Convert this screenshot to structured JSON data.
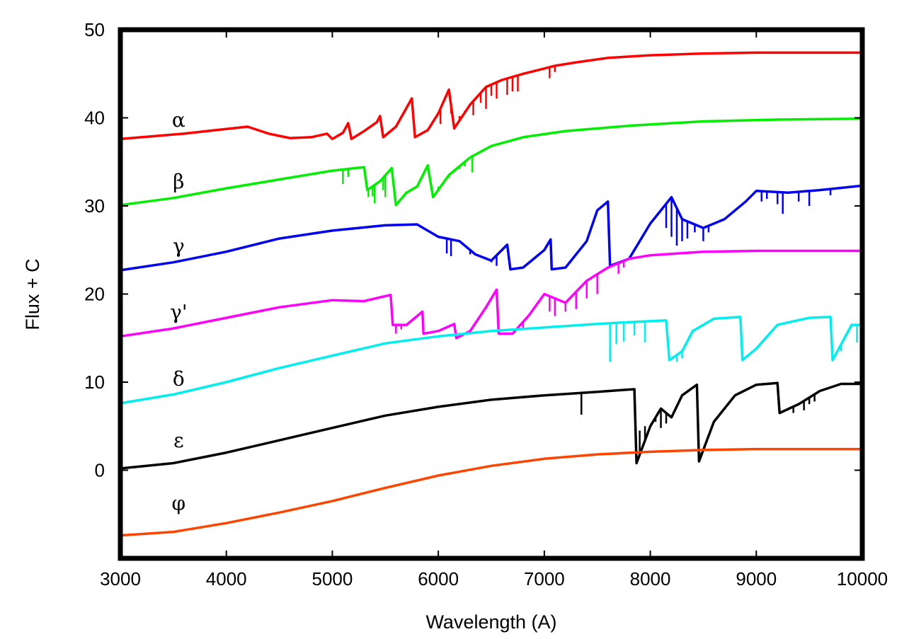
{
  "chart_data": {
    "type": "line",
    "title": "",
    "xlabel": "Wavelength (A)",
    "ylabel": "Flux + C",
    "xlim": [
      3000,
      10000
    ],
    "ylim": [
      -10,
      50
    ],
    "xticks": [
      3000,
      4000,
      5000,
      6000,
      7000,
      8000,
      9000,
      10000
    ],
    "yticks": [
      0,
      10,
      20,
      30,
      40,
      50
    ],
    "xtick_labels": [
      "3000",
      "4000",
      "5000",
      "6000",
      "7000",
      "8000",
      "9000",
      "10000"
    ],
    "ytick_labels": [
      "0",
      "10",
      "20",
      "30",
      "40",
      "50"
    ],
    "grid": false,
    "legend": "none",
    "series": [
      {
        "label": "α",
        "color": "#ff0000",
        "label_x": 3550,
        "label_y": 39.0,
        "points": [
          [
            3000,
            37.6
          ],
          [
            3300,
            37.9
          ],
          [
            3600,
            38.2
          ],
          [
            3900,
            38.6
          ],
          [
            4200,
            39.0
          ],
          [
            4400,
            38.2
          ],
          [
            4600,
            37.7
          ],
          [
            4800,
            37.8
          ],
          [
            4950,
            38.2
          ],
          [
            5000,
            37.6
          ],
          [
            5100,
            38.3
          ],
          [
            5150,
            39.4
          ],
          [
            5180,
            37.6
          ],
          [
            5300,
            38.5
          ],
          [
            5420,
            39.5
          ],
          [
            5450,
            40.2
          ],
          [
            5480,
            37.8
          ],
          [
            5600,
            39.0
          ],
          [
            5750,
            42.2
          ],
          [
            5780,
            37.8
          ],
          [
            5900,
            38.6
          ],
          [
            6000,
            40.5
          ],
          [
            6100,
            43.2
          ],
          [
            6150,
            38.8
          ],
          [
            6300,
            41.5
          ],
          [
            6450,
            43.5
          ],
          [
            6600,
            44.3
          ],
          [
            6800,
            45.0
          ],
          [
            7000,
            45.6
          ],
          [
            7100,
            45.9
          ],
          [
            7300,
            46.3
          ],
          [
            7600,
            46.8
          ],
          [
            8000,
            47.1
          ],
          [
            8500,
            47.3
          ],
          [
            9000,
            47.4
          ],
          [
            9500,
            47.4
          ],
          [
            10000,
            47.4
          ]
        ],
        "dips": [
          [
            5500,
            38.0
          ],
          [
            6020,
            39.3
          ],
          [
            6120,
            40.5
          ],
          [
            6200,
            40.2
          ],
          [
            6250,
            40.8
          ],
          [
            6330,
            40.3
          ],
          [
            6400,
            41.7
          ],
          [
            6450,
            41.0
          ],
          [
            6500,
            42.5
          ],
          [
            6550,
            42.2
          ],
          [
            6650,
            42.6
          ],
          [
            6700,
            43.0
          ],
          [
            6750,
            43.0
          ],
          [
            7050,
            44.5
          ],
          [
            7100,
            45.2
          ]
        ]
      },
      {
        "label": "β",
        "color": "#00ee00",
        "label_x": 3550,
        "label_y": 32.0,
        "points": [
          [
            3000,
            30.1
          ],
          [
            3500,
            30.9
          ],
          [
            4000,
            32.0
          ],
          [
            4500,
            33.0
          ],
          [
            5000,
            34.0
          ],
          [
            5300,
            34.4
          ],
          [
            5330,
            31.8
          ],
          [
            5450,
            32.8
          ],
          [
            5560,
            34.3
          ],
          [
            5600,
            30.1
          ],
          [
            5700,
            31.5
          ],
          [
            5800,
            32.2
          ],
          [
            5900,
            34.6
          ],
          [
            5950,
            31.0
          ],
          [
            6100,
            33.5
          ],
          [
            6300,
            35.5
          ],
          [
            6500,
            36.8
          ],
          [
            6800,
            37.8
          ],
          [
            7200,
            38.5
          ],
          [
            7800,
            39.1
          ],
          [
            8500,
            39.6
          ],
          [
            9200,
            39.8
          ],
          [
            10000,
            39.9
          ]
        ],
        "dips": [
          [
            5100,
            32.5
          ],
          [
            5150,
            33.3
          ],
          [
            5340,
            31.0
          ],
          [
            5380,
            31.1
          ],
          [
            5400,
            30.3
          ],
          [
            5480,
            31.8
          ],
          [
            5500,
            31.0
          ],
          [
            5620,
            30.2
          ],
          [
            5950,
            31.0
          ],
          [
            6000,
            32.2
          ],
          [
            6050,
            32.7
          ],
          [
            6100,
            33.2
          ],
          [
            6150,
            33.8
          ],
          [
            6200,
            34.2
          ],
          [
            6250,
            34.5
          ],
          [
            6320,
            33.8
          ]
        ]
      },
      {
        "label": "γ",
        "color": "#0000ee",
        "label_x": 3550,
        "label_y": 24.7,
        "points": [
          [
            3000,
            22.7
          ],
          [
            3500,
            23.6
          ],
          [
            4000,
            24.8
          ],
          [
            4500,
            26.3
          ],
          [
            5000,
            27.2
          ],
          [
            5500,
            27.8
          ],
          [
            5800,
            27.9
          ],
          [
            6000,
            26.5
          ],
          [
            6200,
            26.0
          ],
          [
            6350,
            24.5
          ],
          [
            6500,
            23.8
          ],
          [
            6650,
            25.6
          ],
          [
            6680,
            22.8
          ],
          [
            6800,
            23.0
          ],
          [
            7000,
            25.0
          ],
          [
            7060,
            26.2
          ],
          [
            7070,
            22.8
          ],
          [
            7200,
            23.0
          ],
          [
            7400,
            26.0
          ],
          [
            7500,
            29.5
          ],
          [
            7600,
            30.5
          ],
          [
            7620,
            23.2
          ],
          [
            7800,
            24.0
          ],
          [
            8000,
            28.0
          ],
          [
            8200,
            31.0
          ],
          [
            8300,
            28.5
          ],
          [
            8500,
            27.5
          ],
          [
            8700,
            28.5
          ],
          [
            8900,
            30.5
          ],
          [
            9000,
            31.7
          ],
          [
            9300,
            31.5
          ],
          [
            9600,
            31.8
          ],
          [
            10000,
            32.3
          ]
        ],
        "dips": [
          [
            6080,
            24.6
          ],
          [
            6120,
            24.3
          ],
          [
            6300,
            24.5
          ],
          [
            6500,
            23.6
          ],
          [
            6550,
            23.2
          ],
          [
            8150,
            27.5
          ],
          [
            8200,
            26.5
          ],
          [
            8250,
            25.5
          ],
          [
            8300,
            26.0
          ],
          [
            8350,
            26.3
          ],
          [
            8420,
            27.0
          ],
          [
            8500,
            26.0
          ],
          [
            8550,
            27.0
          ],
          [
            9050,
            30.5
          ],
          [
            9100,
            30.8
          ],
          [
            9200,
            30.2
          ],
          [
            9250,
            29.1
          ],
          [
            9400,
            30.5
          ],
          [
            9500,
            30.0
          ],
          [
            9700,
            31.2
          ]
        ]
      },
      {
        "label": "γ'",
        "color": "#ff00ff",
        "label_x": 3550,
        "label_y": 17.2,
        "points": [
          [
            3000,
            15.2
          ],
          [
            3500,
            16.1
          ],
          [
            4000,
            17.3
          ],
          [
            4500,
            18.5
          ],
          [
            5000,
            19.3
          ],
          [
            5300,
            19.2
          ],
          [
            5550,
            19.9
          ],
          [
            5570,
            16.5
          ],
          [
            5700,
            16.5
          ],
          [
            5850,
            18.0
          ],
          [
            5860,
            15.5
          ],
          [
            6000,
            15.8
          ],
          [
            6150,
            16.6
          ],
          [
            6170,
            15.0
          ],
          [
            6300,
            15.8
          ],
          [
            6450,
            18.5
          ],
          [
            6550,
            20.5
          ],
          [
            6570,
            15.5
          ],
          [
            6700,
            15.5
          ],
          [
            6850,
            17.5
          ],
          [
            7000,
            20.0
          ],
          [
            7200,
            19.0
          ],
          [
            7400,
            21.5
          ],
          [
            7600,
            23.0
          ],
          [
            7800,
            24.0
          ],
          [
            8000,
            24.4
          ],
          [
            8500,
            24.8
          ],
          [
            9000,
            24.9
          ],
          [
            10000,
            24.9
          ]
        ],
        "dips": [
          [
            5600,
            15.5
          ],
          [
            5650,
            16.0
          ],
          [
            6600,
            15.4
          ],
          [
            6800,
            16.0
          ],
          [
            7050,
            18.0
          ],
          [
            7100,
            17.5
          ],
          [
            7200,
            18.0
          ],
          [
            7300,
            18.3
          ],
          [
            7400,
            19.5
          ],
          [
            7500,
            20.0
          ],
          [
            7700,
            22.3
          ],
          [
            7750,
            23.0
          ]
        ]
      },
      {
        "label": "δ",
        "color": "#00eeee",
        "label_x": 3550,
        "label_y": 9.6,
        "points": [
          [
            3000,
            7.6
          ],
          [
            3500,
            8.6
          ],
          [
            4000,
            10.0
          ],
          [
            4500,
            11.6
          ],
          [
            5000,
            13.0
          ],
          [
            5500,
            14.4
          ],
          [
            6000,
            15.2
          ],
          [
            6500,
            15.8
          ],
          [
            7000,
            16.2
          ],
          [
            7500,
            16.6
          ],
          [
            7800,
            16.8
          ],
          [
            8150,
            17.0
          ],
          [
            8180,
            12.5
          ],
          [
            8300,
            13.5
          ],
          [
            8400,
            15.8
          ],
          [
            8600,
            17.2
          ],
          [
            8850,
            17.4
          ],
          [
            8870,
            12.5
          ],
          [
            9000,
            13.8
          ],
          [
            9200,
            16.5
          ],
          [
            9500,
            17.3
          ],
          [
            9700,
            17.4
          ],
          [
            9720,
            12.5
          ],
          [
            9900,
            16.5
          ],
          [
            10000,
            16.5
          ]
        ],
        "dips": [
          [
            7620,
            12.3
          ],
          [
            7680,
            14.3
          ],
          [
            7750,
            14.6
          ],
          [
            7850,
            15.3
          ],
          [
            7950,
            14.5
          ],
          [
            8250,
            12.3
          ],
          [
            8300,
            12.7
          ],
          [
            9800,
            13.5
          ],
          [
            9950,
            14.5
          ]
        ]
      },
      {
        "label": "ε",
        "color": "#000000",
        "label_x": 3550,
        "label_y": 2.6,
        "points": [
          [
            3000,
            0.2
          ],
          [
            3500,
            0.8
          ],
          [
            4000,
            2.0
          ],
          [
            4500,
            3.4
          ],
          [
            5000,
            4.8
          ],
          [
            5500,
            6.2
          ],
          [
            6000,
            7.2
          ],
          [
            6500,
            8.0
          ],
          [
            7000,
            8.5
          ],
          [
            7500,
            8.9
          ],
          [
            7850,
            9.2
          ],
          [
            7870,
            0.8
          ],
          [
            8000,
            5.0
          ],
          [
            8100,
            7.0
          ],
          [
            8200,
            6.0
          ],
          [
            8300,
            8.5
          ],
          [
            8440,
            9.7
          ],
          [
            8460,
            1.0
          ],
          [
            8600,
            5.5
          ],
          [
            8800,
            8.5
          ],
          [
            9000,
            9.7
          ],
          [
            9200,
            9.9
          ],
          [
            9220,
            6.5
          ],
          [
            9400,
            7.5
          ],
          [
            9600,
            9.0
          ],
          [
            9800,
            9.8
          ],
          [
            10000,
            9.8
          ]
        ],
        "dips": [
          [
            7350,
            6.3
          ],
          [
            7900,
            4.5
          ],
          [
            7950,
            5.0
          ],
          [
            8050,
            5.5
          ],
          [
            8100,
            4.8
          ],
          [
            8150,
            5.3
          ],
          [
            8480,
            2.0
          ],
          [
            8520,
            3.0
          ],
          [
            9300,
            6.8
          ],
          [
            9350,
            6.5
          ],
          [
            9450,
            6.8
          ],
          [
            9500,
            7.5
          ],
          [
            9550,
            7.8
          ]
        ]
      },
      {
        "label": "φ",
        "color": "#ff4400",
        "label_x": 3550,
        "label_y": -4.5,
        "points": [
          [
            3000,
            -7.4
          ],
          [
            3500,
            -7.0
          ],
          [
            4000,
            -6.0
          ],
          [
            4500,
            -4.8
          ],
          [
            5000,
            -3.5
          ],
          [
            5500,
            -2.0
          ],
          [
            6000,
            -0.6
          ],
          [
            6500,
            0.5
          ],
          [
            7000,
            1.3
          ],
          [
            7500,
            1.8
          ],
          [
            8000,
            2.1
          ],
          [
            8500,
            2.3
          ],
          [
            9000,
            2.4
          ],
          [
            10000,
            2.4
          ]
        ],
        "dips": []
      }
    ]
  }
}
